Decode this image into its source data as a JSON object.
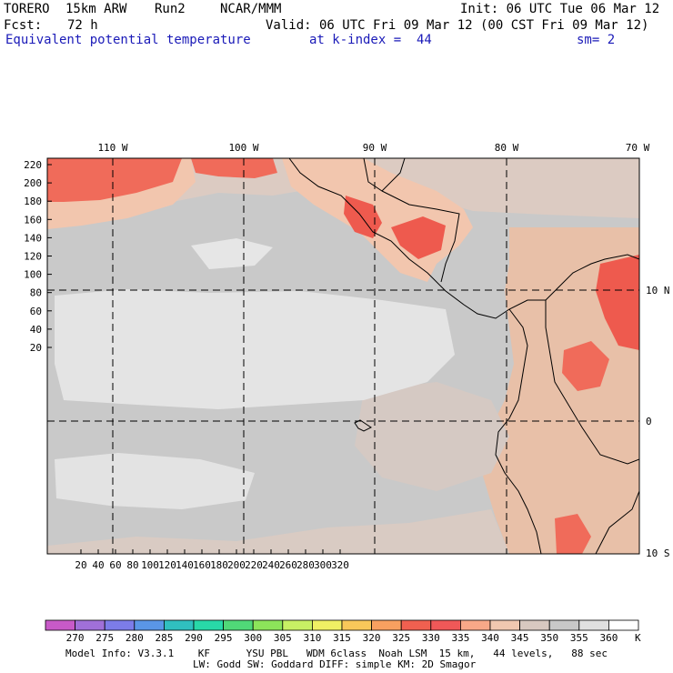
{
  "header": {
    "model": "TORERO",
    "resolution": "15km ARW",
    "run": "Run2",
    "org": "NCAR/MMM",
    "init": "Init: 06 UTC Tue 06 Mar 12",
    "fcst_label": "Fcst:",
    "fcst_value": "72 h",
    "valid": "Valid: 06 UTC Fri 09 Mar 12 (00 CST Fri 09 Mar 12)",
    "field": "Equivalent potential temperature",
    "level": "at k-index =  44",
    "smoothing": "sm= 2"
  },
  "map": {
    "top_lon_labels": [
      "110 W",
      "100 W",
      "90 W",
      "80 W",
      "70 W"
    ],
    "right_lat_labels": [
      "10 N",
      "0",
      "10 S"
    ],
    "y_ticks": [
      "220",
      "200",
      "180",
      "160",
      "140",
      "120",
      "100",
      "80",
      "60",
      "40",
      "20"
    ],
    "x_ticks": [
      "20",
      "40",
      "60",
      "80",
      "100",
      "120",
      "140",
      "160",
      "180",
      "200",
      "220",
      "240",
      "260",
      "280",
      "300",
      "320"
    ]
  },
  "colorbar": {
    "labels": [
      "270",
      "275",
      "280",
      "285",
      "290",
      "295",
      "300",
      "305",
      "310",
      "315",
      "320",
      "325",
      "330",
      "335",
      "340",
      "345",
      "350",
      "355",
      "360"
    ],
    "unit": "K",
    "colors": [
      "#c85ac8",
      "#a070d8",
      "#7c7ce8",
      "#5a96e6",
      "#30bfbf",
      "#28d8a8",
      "#50d878",
      "#8ce45a",
      "#c8f064",
      "#f0f064",
      "#f8c85a",
      "#f8a060",
      "#f06050",
      "#f05858",
      "#f8a888",
      "#f0c8b0",
      "#d8c8c0",
      "#c8c8c8",
      "#e0e0e0",
      "#ffffff"
    ]
  },
  "footer": {
    "line1": "Model Info: V3.3.1    KF      YSU PBL   WDM 6class  Noah LSM  15 km,   44 levels,   88 sec",
    "line2": "LW: Godd SW: Goddard DIFF: simple KM: 2D Smagor"
  }
}
